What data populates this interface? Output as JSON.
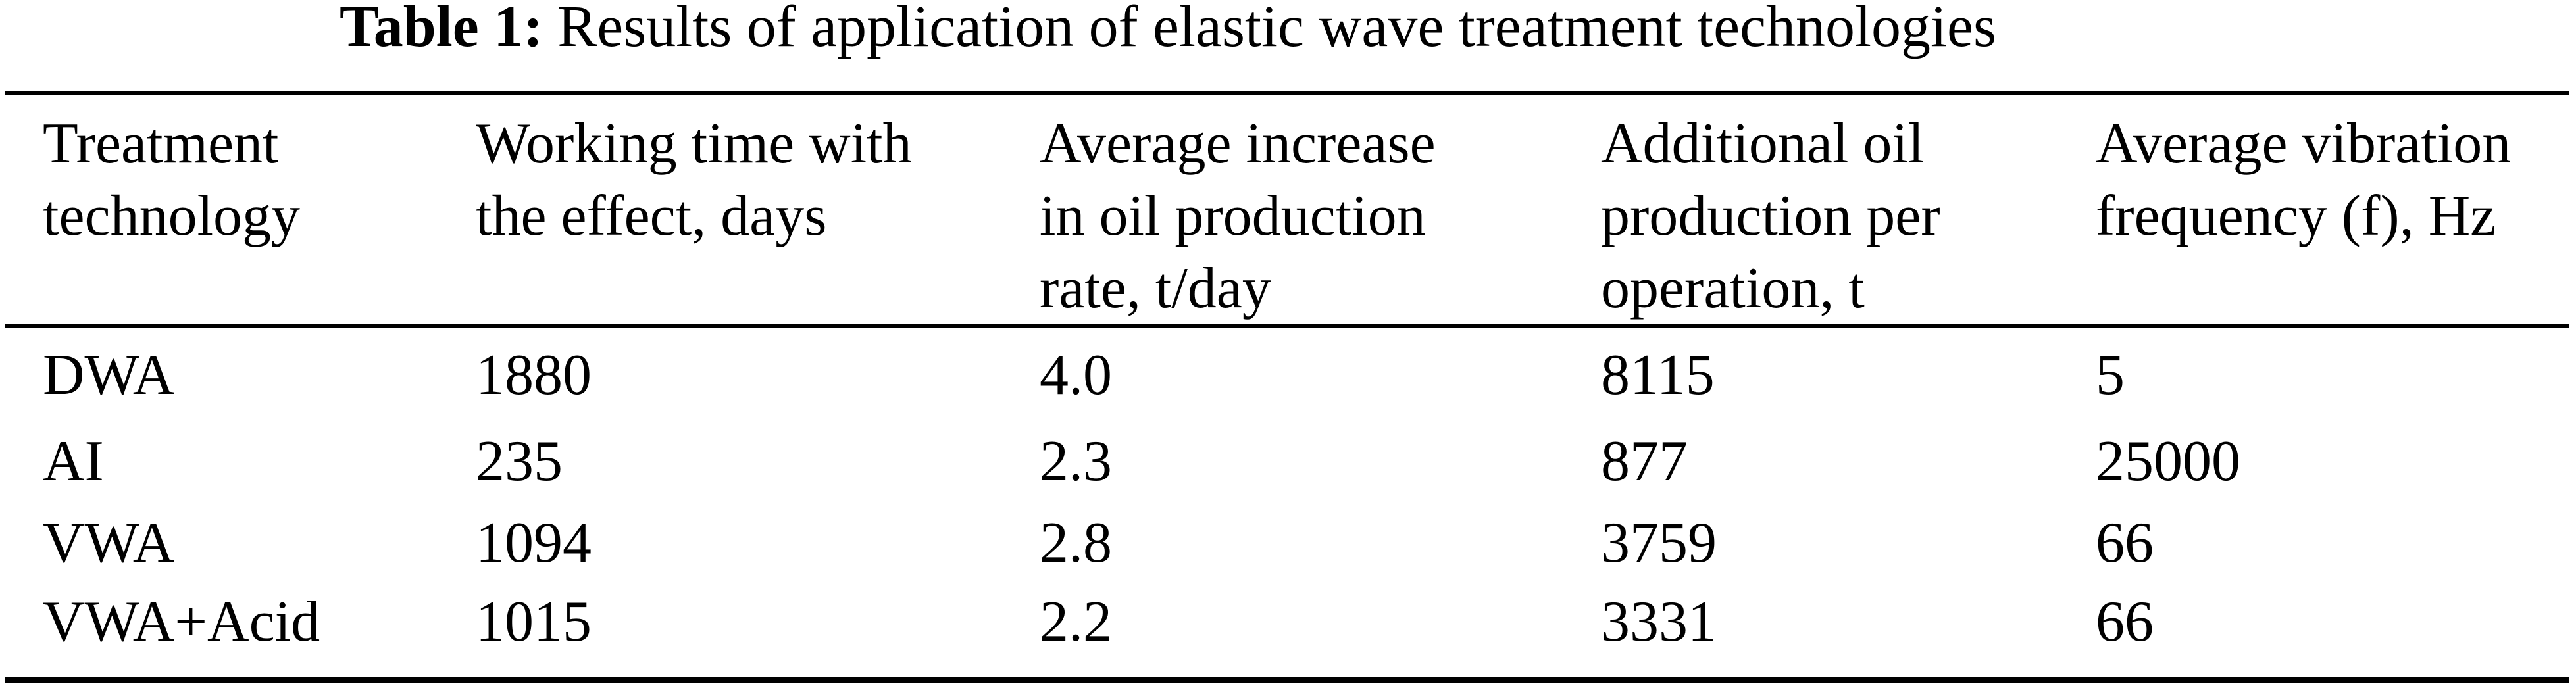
{
  "page": {
    "background": "#ffffff",
    "text_color": "#000000"
  },
  "caption": {
    "label": "Table 1:",
    "text": "Results of application of elastic wave treatment technologies"
  },
  "table": {
    "columns": [
      {
        "label": "Treatment technology",
        "lines": [
          "Treatment",
          "technology"
        ]
      },
      {
        "label": "Working time with the effect, days",
        "lines": [
          "Working time with",
          "the effect, days"
        ]
      },
      {
        "label": "Average increase in oil production rate, t/day",
        "lines": [
          "Average increase",
          "in oil production",
          "rate, t/day"
        ]
      },
      {
        "label": "Additional oil production per operation, t",
        "lines": [
          "Additional oil",
          "production per",
          "operation, t"
        ]
      },
      {
        "label": "Average vibration frequency (f), Hz",
        "lines": [
          "Average vibration",
          "frequency (f), Hz"
        ]
      }
    ],
    "rows": [
      {
        "cells": [
          "DWA",
          "1880",
          "4.0",
          "8115",
          "5"
        ]
      },
      {
        "cells": [
          "AI",
          "235",
          "2.3",
          "877",
          "25000"
        ]
      },
      {
        "cells": [
          "VWA",
          "1094",
          "2.8",
          "3759",
          "66"
        ]
      },
      {
        "cells": [
          "VWA+Acid",
          "1015",
          "2.2",
          "3331",
          "66"
        ]
      }
    ]
  },
  "chart_data": {
    "type": "table",
    "title": "Table 1: Results of application of elastic wave treatment technologies",
    "columns": [
      "Treatment technology",
      "Working time with the effect, days",
      "Average increase in oil production rate, t/day",
      "Additional oil production per operation, t",
      "Average vibration frequency (f), Hz"
    ],
    "rows": [
      [
        "DWA",
        1880,
        4.0,
        8115,
        5
      ],
      [
        "AI",
        235,
        2.3,
        877,
        25000
      ],
      [
        "VWA",
        1094,
        2.8,
        3759,
        66
      ],
      [
        "VWA+Acid",
        1015,
        2.2,
        3331,
        66
      ]
    ]
  }
}
